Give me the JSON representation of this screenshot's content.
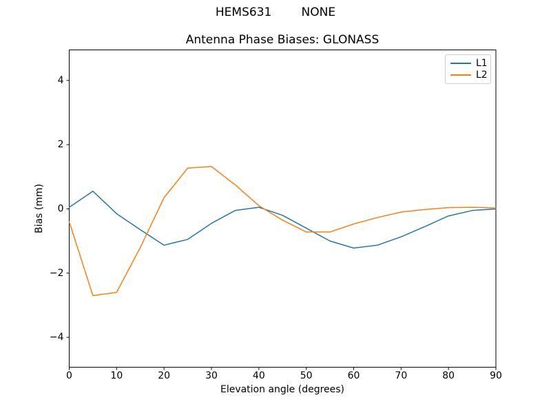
{
  "figure": {
    "suptitle": "HEMS631        NONE"
  },
  "chart_data": {
    "type": "line",
    "title": "Antenna Phase Biases: GLONASS",
    "xlabel": "Elevation angle (degrees)",
    "ylabel": "Bias (mm)",
    "xlim": [
      0,
      90
    ],
    "ylim": [
      -4.93,
      4.95
    ],
    "xticks": [
      0,
      10,
      20,
      30,
      40,
      50,
      60,
      70,
      80,
      90
    ],
    "yticks": [
      -4,
      -2,
      0,
      2,
      4
    ],
    "grid": false,
    "legend_position": "upper right",
    "x": [
      0,
      5,
      10,
      15,
      20,
      25,
      30,
      35,
      40,
      45,
      50,
      55,
      60,
      65,
      70,
      75,
      80,
      85,
      90
    ],
    "series": [
      {
        "name": "L1",
        "color": "#1f77b4",
        "values": [
          0.05,
          0.55,
          -0.15,
          -0.65,
          -1.13,
          -0.95,
          -0.45,
          -0.05,
          0.05,
          -0.2,
          -0.6,
          -1.0,
          -1.22,
          -1.13,
          -0.87,
          -0.55,
          -0.22,
          -0.05,
          0.0
        ]
      },
      {
        "name": "L2",
        "color": "#ff7f0e",
        "values": [
          -0.4,
          -2.7,
          -2.6,
          -1.2,
          0.35,
          1.27,
          1.32,
          0.75,
          0.1,
          -0.35,
          -0.72,
          -0.72,
          -0.47,
          -0.27,
          -0.1,
          -0.02,
          0.04,
          0.05,
          0.03
        ]
      }
    ]
  }
}
